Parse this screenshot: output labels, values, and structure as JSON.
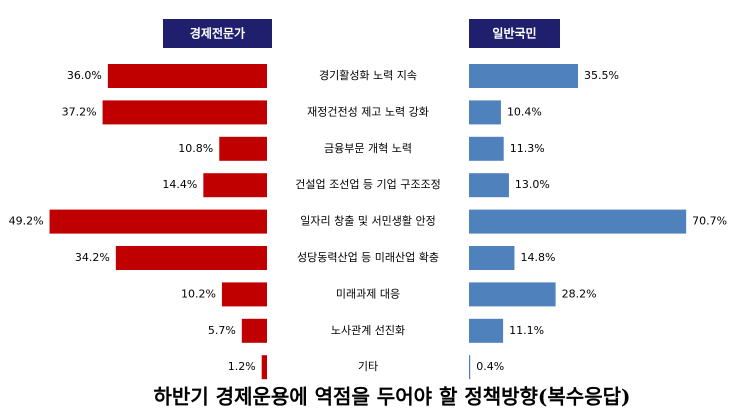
{
  "chart_data": {
    "type": "butterfly",
    "title": "하반기 경제운용에 역점을 두어야 할 정책방향(복수응답)",
    "categories": [
      "경기활성화 노력 지속",
      "재정건전성 제고 노력 강화",
      "금융부문 개혁 노력",
      "건설업 조선업 등 기업 구조조정",
      "일자리 창출 및 서민생활 안정",
      "성당동력산업 등 미래산업 확충",
      "미래과제 대응",
      "노사관계 선진화",
      "기타"
    ],
    "series": [
      {
        "name": "경제전문가",
        "color": "#c00000",
        "side": "left",
        "xlim": [
          0,
          50
        ],
        "values": [
          36.0,
          37.2,
          10.8,
          14.4,
          49.2,
          34.2,
          10.2,
          5.7,
          1.2
        ],
        "value_labels": [
          "36.0%",
          "37.2%",
          "10.8%",
          "14.4%",
          "49.2%",
          "34.2%",
          "10.2%",
          "5.7%",
          "1.2%"
        ]
      },
      {
        "name": "일반국민",
        "color": "#4f81bd",
        "side": "right",
        "xlim": [
          0,
          70
        ],
        "values": [
          35.5,
          10.4,
          11.3,
          13.0,
          70.7,
          14.8,
          28.2,
          11.1,
          0.4
        ],
        "value_labels": [
          "35.5%",
          "10.4%",
          "11.3%",
          "13.0%",
          "70.7%",
          "14.8%",
          "28.2%",
          "11.1%",
          "0.4%"
        ]
      }
    ]
  }
}
